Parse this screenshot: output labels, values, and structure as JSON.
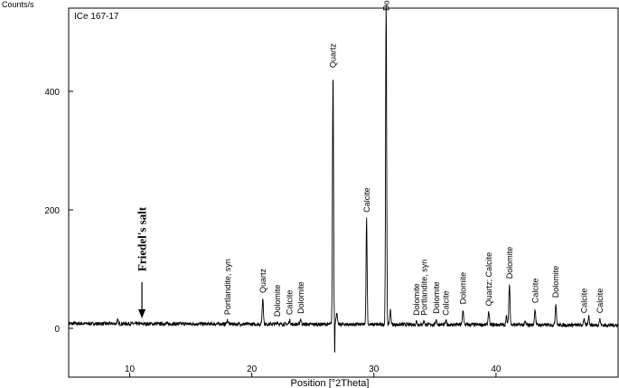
{
  "chart_data": {
    "type": "line",
    "title": "",
    "sample_label": "ICe 167-17",
    "xlabel": "Position [°2Theta]",
    "ylabel": "Counts/s",
    "xlim": [
      5,
      50
    ],
    "ylim": [
      0,
      550
    ],
    "x_ticks": [
      10,
      20,
      30,
      40
    ],
    "y_ticks": [
      0,
      200,
      400
    ],
    "grid": false,
    "series": [
      {
        "baseline": 8,
        "peaks": [
          {
            "x": 9.0,
            "y": 14
          },
          {
            "x": 18.0,
            "y": 15
          },
          {
            "x": 20.9,
            "y": 52
          },
          {
            "x": 22.1,
            "y": 12
          },
          {
            "x": 23.1,
            "y": 15
          },
          {
            "x": 24.0,
            "y": 17
          },
          {
            "x": 26.65,
            "y": 432
          },
          {
            "x": 26.95,
            "y": 28
          },
          {
            "x": 29.4,
            "y": 188
          },
          {
            "x": 31.0,
            "y": 550
          },
          {
            "x": 31.35,
            "y": 32
          },
          {
            "x": 33.5,
            "y": 14
          },
          {
            "x": 34.1,
            "y": 14
          },
          {
            "x": 35.1,
            "y": 17
          },
          {
            "x": 35.9,
            "y": 14
          },
          {
            "x": 37.3,
            "y": 33
          },
          {
            "x": 39.4,
            "y": 30
          },
          {
            "x": 40.85,
            "y": 22
          },
          {
            "x": 41.1,
            "y": 76
          },
          {
            "x": 42.4,
            "y": 13
          },
          {
            "x": 43.2,
            "y": 35
          },
          {
            "x": 44.9,
            "y": 44
          },
          {
            "x": 47.2,
            "y": 18
          },
          {
            "x": 47.6,
            "y": 23
          },
          {
            "x": 48.5,
            "y": 18
          }
        ]
      }
    ],
    "peak_labels": [
      {
        "text": "Portlandite, syn",
        "x": 18.0
      },
      {
        "text": "Quartz",
        "x": 20.9
      },
      {
        "text": "Dolomite",
        "x": 22.1
      },
      {
        "text": "Calcite",
        "x": 23.1
      },
      {
        "text": "Dolomite",
        "x": 24.0
      },
      {
        "text": "Quartz",
        "x": 26.65
      },
      {
        "text": "Calcite",
        "x": 29.4
      },
      {
        "text": "Dolomite",
        "x": 31.0
      },
      {
        "text": "Dolomite",
        "x": 33.5
      },
      {
        "text": "Portlandite, syn",
        "x": 34.1
      },
      {
        "text": "Dolomite",
        "x": 35.1
      },
      {
        "text": "Calcite",
        "x": 35.9
      },
      {
        "text": "Dolomite",
        "x": 37.3
      },
      {
        "text": "Quartz; Calcite",
        "x": 39.4
      },
      {
        "text": "Dolomite",
        "x": 41.1
      },
      {
        "text": "Calcite",
        "x": 43.2
      },
      {
        "text": "Dolomite",
        "x": 44.9
      },
      {
        "text": "Calcite",
        "x": 47.2
      },
      {
        "text": "Calcite",
        "x": 48.5
      }
    ],
    "annotation": {
      "text": "Friedel's salt",
      "x": 11.0
    }
  }
}
